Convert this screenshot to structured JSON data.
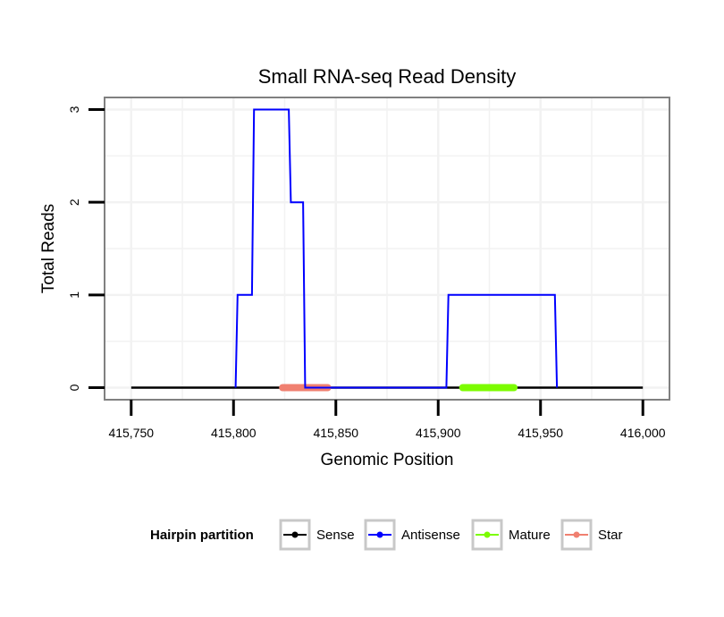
{
  "chart_data": {
    "type": "line",
    "title": "Small RNA-seq Read Density",
    "xlabel": "Genomic Position",
    "ylabel": "Total Reads",
    "xlim": [
      415737,
      416013
    ],
    "ylim": [
      -0.13,
      3.13
    ],
    "x_ticks": [
      415750,
      415800,
      415850,
      415900,
      415950,
      416000
    ],
    "x_tick_labels": [
      "415,750",
      "415,800",
      "415,850",
      "415,900",
      "415,950",
      "416,000"
    ],
    "y_ticks": [
      0,
      1,
      2,
      3
    ],
    "y_tick_labels": [
      "0",
      "1",
      "2",
      "3"
    ],
    "grid": true,
    "legend": {
      "title": "Hairpin partition",
      "position": "bottom",
      "entries": [
        {
          "name": "Sense",
          "color": "#000000"
        },
        {
          "name": "Antisense",
          "color": "#0000ff"
        },
        {
          "name": "Mature",
          "color": "#7cfc00"
        },
        {
          "name": "Star",
          "color": "#f08070"
        }
      ]
    },
    "series": [
      {
        "name": "Sense",
        "color": "#000000",
        "x": [
          415750,
          416000
        ],
        "y": [
          0,
          0
        ]
      },
      {
        "name": "Antisense",
        "color": "#0000ff",
        "x": [
          415801,
          415802,
          415809,
          415810,
          415827,
          415828,
          415834,
          415835,
          415904,
          415905,
          415957,
          415958
        ],
        "y": [
          0,
          1,
          1,
          3,
          3,
          2,
          2,
          0,
          0,
          1,
          1,
          0
        ]
      },
      {
        "name": "Mature",
        "color": "#7cfc00",
        "x": [
          415912,
          415937
        ],
        "y": [
          0,
          0
        ]
      },
      {
        "name": "Star",
        "color": "#f08070",
        "x": [
          415824,
          415846
        ],
        "y": [
          0,
          0
        ]
      }
    ]
  }
}
